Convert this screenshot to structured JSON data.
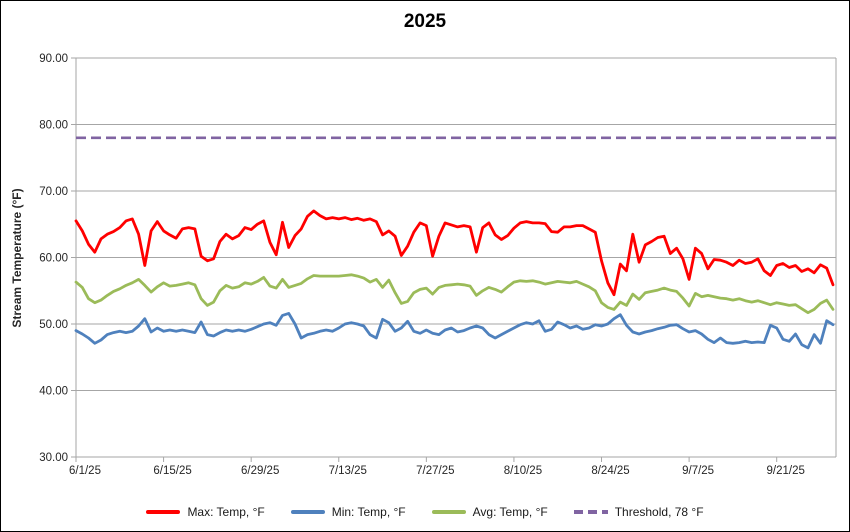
{
  "chart_data": {
    "type": "line",
    "title": "2025",
    "xlabel": "",
    "ylabel": "Stream Temperature (°F)",
    "ylim": [
      30,
      90
    ],
    "grid": "horizontal-only",
    "legend_position": "bottom",
    "x_unit": "daily values starting 6/1/25",
    "y_ticks": [
      {
        "value": 90,
        "label": "90.00"
      },
      {
        "value": 80,
        "label": "80.00"
      },
      {
        "value": 70,
        "label": "70.00"
      },
      {
        "value": 60,
        "label": "60.00"
      },
      {
        "value": 50,
        "label": "50.00"
      },
      {
        "value": 40,
        "label": "40.00"
      },
      {
        "value": 30,
        "label": "30.00"
      }
    ],
    "x_ticks": [
      {
        "day": 0,
        "label": "6/1/25"
      },
      {
        "day": 14,
        "label": "6/15/25"
      },
      {
        "day": 28,
        "label": "6/29/25"
      },
      {
        "day": 42,
        "label": "7/13/25"
      },
      {
        "day": 56,
        "label": "7/27/25"
      },
      {
        "day": 70,
        "label": "8/10/25"
      },
      {
        "day": 84,
        "label": "8/24/25"
      },
      {
        "day": 98,
        "label": "9/7/25"
      },
      {
        "day": 112,
        "label": "9/21/25"
      }
    ],
    "threshold": {
      "label": "Threshold, 78 °F",
      "value": 78,
      "color": "#8064A2",
      "dashed": true
    },
    "colors": {
      "gridline": "#A6A6A6",
      "axis_text": "#262626"
    },
    "series": [
      {
        "name": "Max: Temp, °F",
        "color": "#FF0000",
        "values": [
          65.5,
          64.0,
          62.0,
          60.8,
          62.8,
          63.5,
          63.9,
          64.5,
          65.5,
          65.8,
          63.5,
          58.8,
          64.0,
          65.4,
          64.0,
          63.4,
          62.9,
          64.3,
          64.5,
          64.3,
          60.2,
          59.5,
          59.8,
          62.4,
          63.5,
          62.8,
          63.3,
          64.5,
          64.2,
          65.0,
          65.5,
          62.3,
          60.4,
          65.3,
          61.5,
          63.3,
          64.3,
          66.2,
          67.0,
          66.3,
          65.8,
          66.0,
          65.8,
          66.0,
          65.7,
          65.9,
          65.6,
          65.8,
          65.4,
          63.4,
          64.0,
          63.2,
          60.3,
          61.7,
          63.8,
          65.2,
          64.8,
          60.2,
          63.2,
          65.2,
          64.9,
          64.6,
          64.8,
          64.6,
          60.8,
          64.5,
          65.2,
          63.4,
          62.7,
          63.3,
          64.4,
          65.2,
          65.4,
          65.2,
          65.2,
          65.1,
          63.9,
          63.8,
          64.6,
          64.6,
          64.8,
          64.8,
          64.3,
          63.8,
          59.5,
          56.2,
          54.4,
          59.0,
          58.0,
          63.5,
          59.3,
          61.9,
          62.4,
          63.0,
          63.2,
          60.6,
          61.4,
          59.8,
          56.7,
          61.4,
          60.6,
          58.3,
          59.7,
          59.6,
          59.3,
          58.8,
          59.6,
          59.1,
          59.3,
          59.8,
          58.0,
          57.3,
          58.8,
          59.1,
          58.5,
          58.8,
          57.9,
          58.3,
          57.7,
          58.9,
          58.4,
          55.9
        ]
      },
      {
        "name": "Min: Temp, °F",
        "color": "#4F81BD",
        "values": [
          49.0,
          48.5,
          47.9,
          47.1,
          47.6,
          48.4,
          48.7,
          48.9,
          48.7,
          48.9,
          49.7,
          50.8,
          48.8,
          49.4,
          48.9,
          49.1,
          48.9,
          49.1,
          48.9,
          48.7,
          50.3,
          48.4,
          48.2,
          48.7,
          49.1,
          48.9,
          49.1,
          48.9,
          49.2,
          49.6,
          50.0,
          50.2,
          49.8,
          51.3,
          51.6,
          50.0,
          47.9,
          48.4,
          48.6,
          48.9,
          49.1,
          48.9,
          49.4,
          50.0,
          50.2,
          50.0,
          49.7,
          48.4,
          47.9,
          50.7,
          50.2,
          48.9,
          49.4,
          50.4,
          48.9,
          48.6,
          49.1,
          48.6,
          48.4,
          49.1,
          49.4,
          48.8,
          49.0,
          49.4,
          49.7,
          49.4,
          48.4,
          47.9,
          48.4,
          48.9,
          49.4,
          49.9,
          50.2,
          50.0,
          50.5,
          48.9,
          49.2,
          50.3,
          49.9,
          49.4,
          49.7,
          49.2,
          49.4,
          49.9,
          49.7,
          50.0,
          50.8,
          51.4,
          49.8,
          48.8,
          48.5,
          48.8,
          49.0,
          49.3,
          49.5,
          49.8,
          49.9,
          49.3,
          48.8,
          49.0,
          48.5,
          47.7,
          47.2,
          47.9,
          47.2,
          47.1,
          47.2,
          47.4,
          47.2,
          47.3,
          47.2,
          49.8,
          49.4,
          47.7,
          47.4,
          48.5,
          46.9,
          46.4,
          48.4,
          47.1,
          50.5,
          49.9
        ]
      },
      {
        "name": "Avg: Temp, °F",
        "color": "#9BBB59",
        "values": [
          56.3,
          55.5,
          53.8,
          53.2,
          53.6,
          54.3,
          54.9,
          55.3,
          55.8,
          56.2,
          56.7,
          55.8,
          54.8,
          55.6,
          56.2,
          55.7,
          55.8,
          56.0,
          56.2,
          55.9,
          53.8,
          52.8,
          53.3,
          55.0,
          55.8,
          55.4,
          55.6,
          56.2,
          56.0,
          56.4,
          57.0,
          55.7,
          55.4,
          56.7,
          55.5,
          55.8,
          56.1,
          56.8,
          57.3,
          57.2,
          57.2,
          57.2,
          57.2,
          57.3,
          57.4,
          57.2,
          56.9,
          56.3,
          56.7,
          55.5,
          56.6,
          54.7,
          53.1,
          53.4,
          54.7,
          55.2,
          55.4,
          54.5,
          55.5,
          55.8,
          55.9,
          56.0,
          55.9,
          55.7,
          54.3,
          55.0,
          55.5,
          55.2,
          54.8,
          55.6,
          56.3,
          56.5,
          56.4,
          56.5,
          56.3,
          56.0,
          56.2,
          56.4,
          56.3,
          56.2,
          56.4,
          56.0,
          55.6,
          55.0,
          53.2,
          52.5,
          52.2,
          53.3,
          52.8,
          54.5,
          53.7,
          54.7,
          54.9,
          55.1,
          55.4,
          55.1,
          54.9,
          53.9,
          52.7,
          54.6,
          54.1,
          54.3,
          54.1,
          53.9,
          53.8,
          53.6,
          53.8,
          53.5,
          53.3,
          53.5,
          53.2,
          52.9,
          53.2,
          53.0,
          52.8,
          52.9,
          52.3,
          51.7,
          52.2,
          53.1,
          53.6,
          52.2
        ]
      }
    ]
  }
}
